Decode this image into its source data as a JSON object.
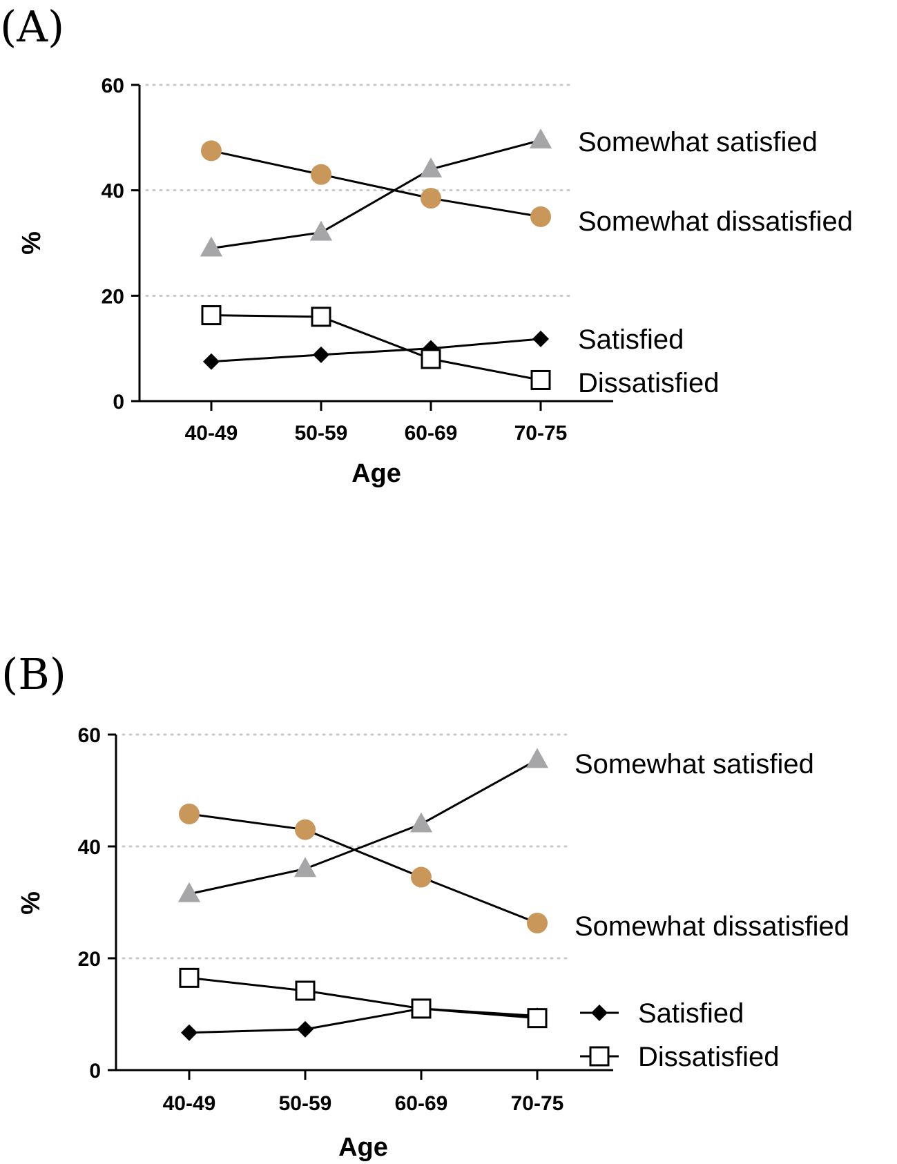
{
  "chart_data": [
    {
      "type": "line",
      "panel_label": "(A)",
      "xlabel": "Age",
      "ylabel": "%",
      "ylim": [
        0,
        60
      ],
      "yticks": [
        "0",
        "20",
        "40",
        "60"
      ],
      "categories": [
        "40-49",
        "50-59",
        "60-69",
        "70-75"
      ],
      "grid": "horizontal dotted",
      "series": [
        {
          "key": "somewhat-satisfied",
          "name": "Somewhat satisfied",
          "marker": "triangle",
          "color": "#a6a6a8",
          "values": [
            29,
            32,
            44,
            49.5
          ]
        },
        {
          "key": "somewhat-dissatisfied",
          "name": "Somewhat dissatisfied",
          "marker": "circle",
          "color": "#c9975a",
          "values": [
            47.5,
            43,
            38.5,
            35
          ]
        },
        {
          "key": "satisfied",
          "name": "Satisfied",
          "marker": "diamond",
          "color": "#000000",
          "values": [
            7.5,
            8.8,
            10,
            11.8
          ]
        },
        {
          "key": "dissatisfied",
          "name": "Dissatisfied",
          "marker": "square-open",
          "color": "#000000",
          "values": [
            16.3,
            16,
            8,
            4
          ]
        }
      ]
    },
    {
      "type": "line",
      "panel_label": "(B)",
      "xlabel": "Age",
      "ylabel": "%",
      "ylim": [
        0,
        60
      ],
      "yticks": [
        "0",
        "20",
        "40",
        "60"
      ],
      "categories": [
        "40-49",
        "50-59",
        "60-69",
        "70-75"
      ],
      "grid": "horizontal dotted",
      "series": [
        {
          "key": "somewhat-satisfied",
          "name": "Somewhat satisfied",
          "marker": "triangle",
          "color": "#a6a6a8",
          "values": [
            31.5,
            36,
            44,
            55.5
          ]
        },
        {
          "key": "somewhat-dissatisfied",
          "name": "Somewhat dissatisfied",
          "marker": "circle",
          "color": "#c9975a",
          "values": [
            45.8,
            43,
            34.5,
            26.3
          ]
        },
        {
          "key": "satisfied",
          "name": "Satisfied",
          "marker": "diamond",
          "color": "#000000",
          "values": [
            6.7,
            7.3,
            11,
            9.7
          ]
        },
        {
          "key": "dissatisfied",
          "name": "Dissatisfied",
          "marker": "square-open",
          "color": "#000000",
          "values": [
            16.5,
            14.2,
            11,
            9.3
          ]
        }
      ]
    }
  ]
}
